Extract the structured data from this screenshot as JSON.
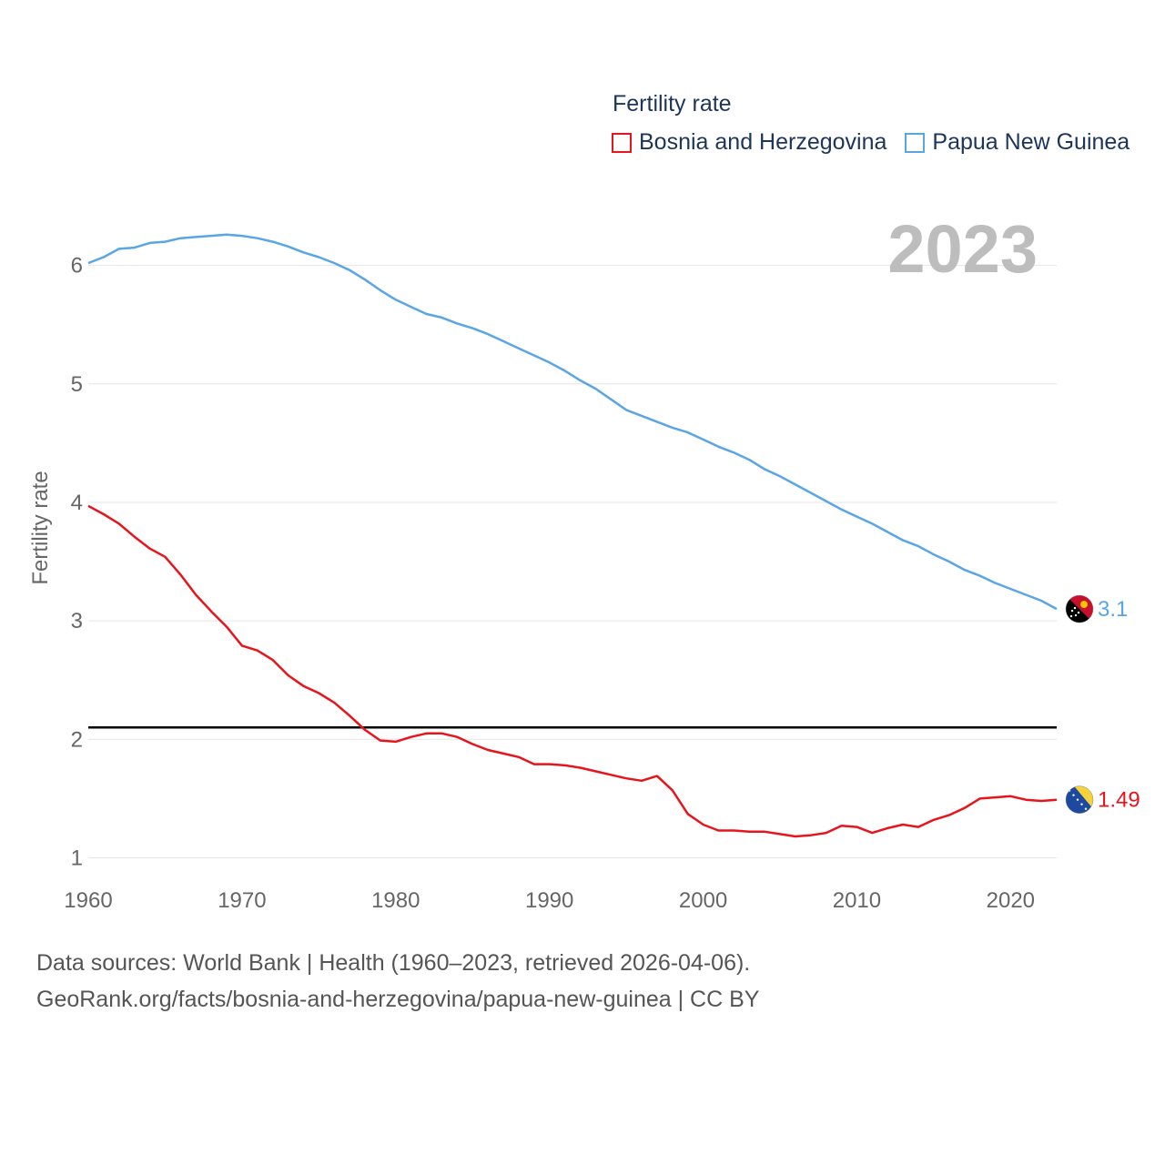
{
  "chart_data": {
    "type": "line",
    "title": "Fertility rate",
    "year_label": "2023",
    "xlabel": "",
    "ylabel": "Fertility rate",
    "xlim": [
      1960,
      2023
    ],
    "ylim": [
      0.75,
      6.55
    ],
    "x_ticks": [
      1960,
      1970,
      1980,
      1990,
      2000,
      2010,
      2020
    ],
    "y_ticks": [
      1,
      2,
      3,
      4,
      5,
      6
    ],
    "reference_line": 2.1,
    "grid": true,
    "legend_position": "top-right",
    "x": [
      1960,
      1961,
      1962,
      1963,
      1964,
      1965,
      1966,
      1967,
      1968,
      1969,
      1970,
      1971,
      1972,
      1973,
      1974,
      1975,
      1976,
      1977,
      1978,
      1979,
      1980,
      1981,
      1982,
      1983,
      1984,
      1985,
      1986,
      1987,
      1988,
      1989,
      1990,
      1991,
      1992,
      1993,
      1994,
      1995,
      1996,
      1997,
      1998,
      1999,
      2000,
      2001,
      2002,
      2003,
      2004,
      2005,
      2006,
      2007,
      2008,
      2009,
      2010,
      2011,
      2012,
      2013,
      2014,
      2015,
      2016,
      2017,
      2018,
      2019,
      2020,
      2021,
      2022,
      2023
    ],
    "series": [
      {
        "name": "Bosnia and Herzegovina",
        "color": "#e8141b",
        "end_label": "1.49",
        "flag": "bosnia-flag-icon",
        "values": [
          3.97,
          3.9,
          3.82,
          3.71,
          3.61,
          3.54,
          3.39,
          3.22,
          3.08,
          2.95,
          2.79,
          2.75,
          2.67,
          2.54,
          2.45,
          2.39,
          2.31,
          2.2,
          2.08,
          1.99,
          1.98,
          2.02,
          2.05,
          2.05,
          2.02,
          1.96,
          1.91,
          1.88,
          1.85,
          1.79,
          1.79,
          1.78,
          1.76,
          1.73,
          1.7,
          1.67,
          1.65,
          1.69,
          1.57,
          1.37,
          1.28,
          1.23,
          1.23,
          1.22,
          1.22,
          1.2,
          1.18,
          1.19,
          1.21,
          1.27,
          1.26,
          1.21,
          1.25,
          1.28,
          1.26,
          1.32,
          1.36,
          1.42,
          1.5,
          1.51,
          1.52,
          1.49,
          1.48,
          1.49
        ]
      },
      {
        "name": "Papua New Guinea",
        "color": "#5aa5e6",
        "end_label": "3.1",
        "flag": "png-flag-icon",
        "values": [
          6.02,
          6.07,
          6.14,
          6.15,
          6.19,
          6.2,
          6.23,
          6.24,
          6.25,
          6.26,
          6.25,
          6.23,
          6.2,
          6.16,
          6.11,
          6.07,
          6.02,
          5.96,
          5.88,
          5.79,
          5.71,
          5.65,
          5.59,
          5.56,
          5.51,
          5.47,
          5.42,
          5.36,
          5.3,
          5.24,
          5.18,
          5.11,
          5.03,
          4.96,
          4.87,
          4.78,
          4.73,
          4.68,
          4.63,
          4.59,
          4.53,
          4.47,
          4.42,
          4.36,
          4.28,
          4.22,
          4.15,
          4.08,
          4.01,
          3.94,
          3.88,
          3.82,
          3.75,
          3.68,
          3.63,
          3.56,
          3.5,
          3.43,
          3.38,
          3.32,
          3.27,
          3.22,
          3.17,
          3.1
        ]
      }
    ]
  },
  "footer": {
    "sources": "Data sources: World Bank | Health (1960–2023, retrieved 2026-04-06).",
    "url": "GeoRank.org/facts/bosnia-and-herzegovina/papua-new-guinea | CC BY"
  }
}
